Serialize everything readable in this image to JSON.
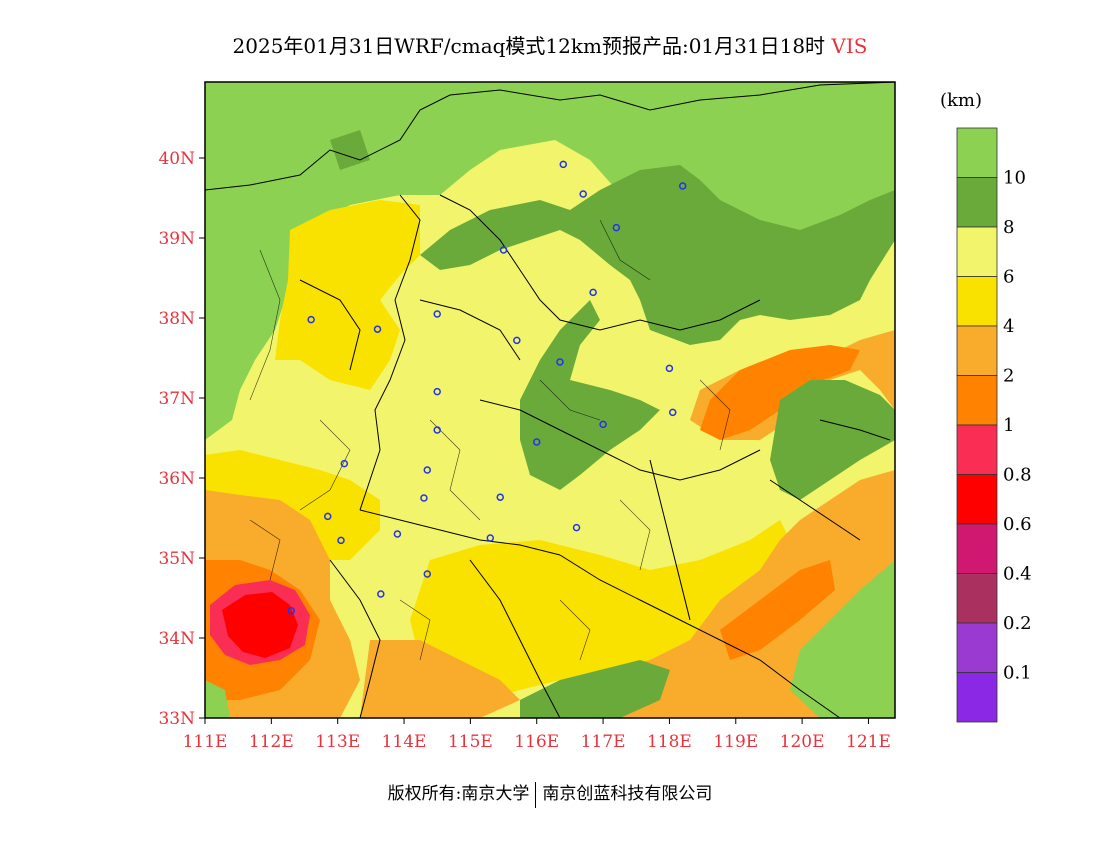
{
  "header": {
    "title_main": "2025年01月31日WRF/cmaq模式12km预报产品:01月31日18时",
    "title_var": "VIS"
  },
  "legend": {
    "unit": "(km)",
    "boundary_labels": [
      "10",
      "8",
      "6",
      "4",
      "2",
      "1",
      "0.8",
      "0.6",
      "0.4",
      "0.2",
      "0.1"
    ],
    "colors": [
      "#8cd151",
      "#6aaa3a",
      "#f2f56b",
      "#f9e100",
      "#f9ab2b",
      "#ff8200",
      "#fa2d55",
      "#ff0000",
      "#d01870",
      "#aa3060",
      "#9a3ad1",
      "#8a28e6"
    ]
  },
  "map": {
    "lat_labels": [
      "40N",
      "39N",
      "38N",
      "37N",
      "36N",
      "35N",
      "34N",
      "33N"
    ],
    "lon_labels": [
      "111E",
      "112E",
      "113E",
      "114E",
      "115E",
      "116E",
      "117E",
      "118E",
      "119E",
      "120E",
      "121E"
    ],
    "lat_range": [
      33,
      40.95
    ],
    "lon_range": [
      111,
      121.4
    ],
    "tick_color": "#e8333c",
    "stations": [
      [
        116.4,
        39.92
      ],
      [
        116.7,
        39.55
      ],
      [
        118.2,
        39.65
      ],
      [
        117.2,
        39.13
      ],
      [
        115.5,
        38.85
      ],
      [
        112.6,
        37.98
      ],
      [
        113.6,
        37.86
      ],
      [
        114.5,
        38.05
      ],
      [
        115.7,
        37.72
      ],
      [
        116.85,
        38.32
      ],
      [
        116.35,
        37.45
      ],
      [
        118.0,
        37.37
      ],
      [
        114.5,
        37.08
      ],
      [
        118.05,
        36.82
      ],
      [
        114.5,
        36.6
      ],
      [
        117.0,
        36.67
      ],
      [
        116.0,
        36.45
      ],
      [
        113.1,
        36.18
      ],
      [
        114.35,
        36.1
      ],
      [
        115.45,
        35.76
      ],
      [
        114.3,
        35.75
      ],
      [
        112.85,
        35.52
      ],
      [
        113.05,
        35.22
      ],
      [
        113.9,
        35.3
      ],
      [
        115.3,
        35.25
      ],
      [
        116.6,
        35.38
      ],
      [
        114.35,
        34.8
      ],
      [
        113.65,
        34.55
      ],
      [
        112.3,
        34.34
      ]
    ]
  },
  "footer": {
    "left": "版权所有:南京大学",
    "right": "南京创蓝科技有限公司"
  }
}
